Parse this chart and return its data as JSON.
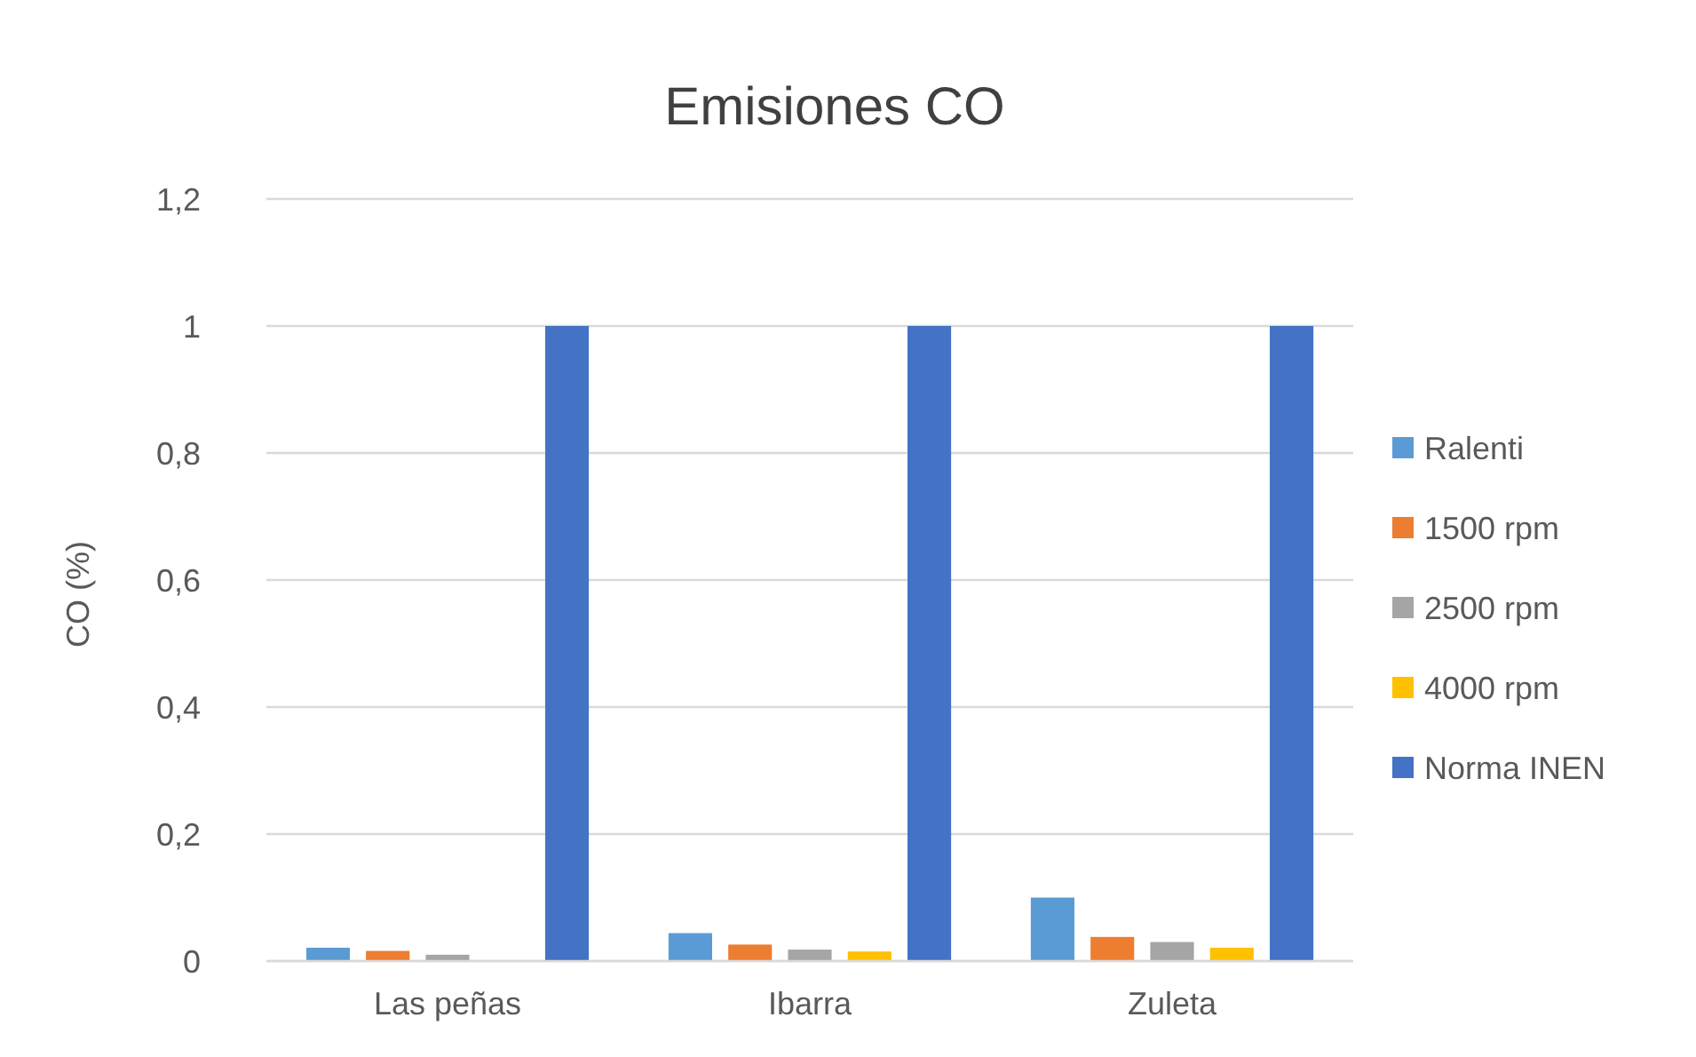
{
  "chart_data": {
    "type": "bar",
    "title": "Emisiones CO",
    "ylabel": "CO (%)",
    "categories": [
      "Las peñas",
      "Ibarra",
      "Zuleta"
    ],
    "series": [
      {
        "name": "Ralenti",
        "color": "#5b9bd5",
        "values": [
          0.021,
          0.044,
          0.1
        ]
      },
      {
        "name": "1500 rpm",
        "color": "#ed7d31",
        "values": [
          0.016,
          0.026,
          0.038
        ]
      },
      {
        "name": "2500 rpm",
        "color": "#a5a5a5",
        "values": [
          0.01,
          0.018,
          0.03
        ]
      },
      {
        "name": "4000 rpm",
        "color": "#ffc000",
        "values": [
          0,
          0.015,
          0.021
        ]
      },
      {
        "name": "Norma INEN",
        "color": "#4472c4",
        "values": [
          1,
          1,
          1
        ]
      }
    ],
    "ylim": [
      0,
      1.2
    ],
    "yticks": [
      {
        "value": 0,
        "label": "0"
      },
      {
        "value": 0.2,
        "label": "0,2"
      },
      {
        "value": 0.4,
        "label": "0,4"
      },
      {
        "value": 0.6,
        "label": "0,6"
      },
      {
        "value": 0.8,
        "label": "0,8"
      },
      {
        "value": 1,
        "label": "1"
      },
      {
        "value": 1.2,
        "label": "1,2"
      }
    ],
    "grid": "y",
    "legend": "right"
  }
}
